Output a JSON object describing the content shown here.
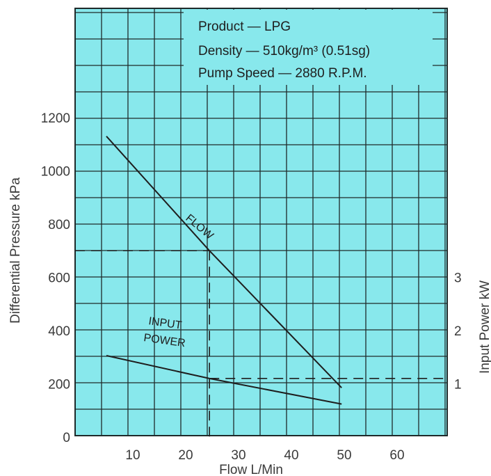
{
  "chart_data": {
    "type": "line",
    "info_box": [
      "Product — LPG",
      "Density — 510kg/m³ (0.51sg)",
      "Pump Speed — 2880 R.P.M."
    ],
    "xlabel": "Flow L/Min",
    "ylabel": "Differential Pressure kPa",
    "y2label": "Input Power kW",
    "xlim": [
      0,
      70
    ],
    "ylim": [
      0,
      1350
    ],
    "y2lim": [
      0,
      4.1
    ],
    "x_ticks": [
      10,
      20,
      30,
      40,
      50,
      60
    ],
    "y_ticks": [
      0,
      200,
      400,
      600,
      800,
      1000,
      1200
    ],
    "y2_ticks": [
      1,
      2,
      3
    ],
    "series": [
      {
        "name": "FLOW",
        "axis": "left",
        "points": [
          [
            5,
            1130
          ],
          [
            24.5,
            700
          ],
          [
            49.5,
            185
          ]
        ]
      },
      {
        "name": "INPUT POWER",
        "axis": "right",
        "points": [
          [
            5,
            1.53
          ],
          [
            24.5,
            1.1
          ],
          [
            49.5,
            0.62
          ]
        ]
      }
    ],
    "reference_lines": {
      "x": 24.5,
      "y": 700,
      "y2": 1.1
    },
    "curve_labels": {
      "flow": "FLOW",
      "input": "INPUT",
      "power": "POWER"
    },
    "grid": true,
    "colors": {
      "background": "#88e8ec",
      "grid": "#1e2a2a",
      "text": "#3a3a3a"
    }
  }
}
